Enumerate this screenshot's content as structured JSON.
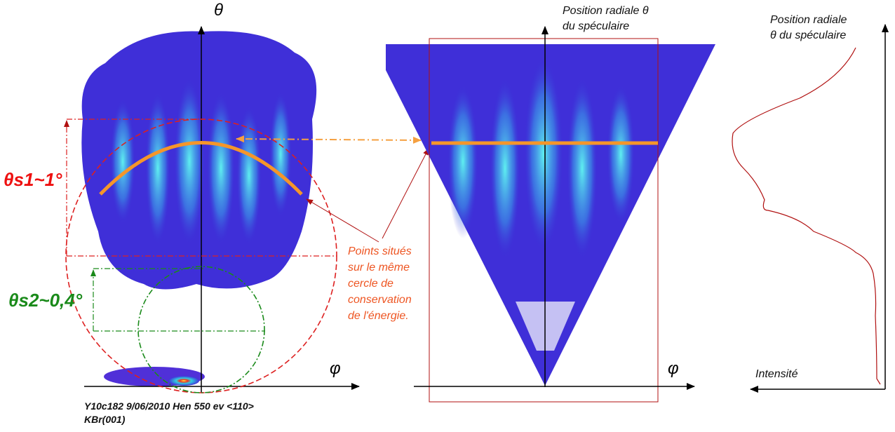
{
  "left_panel": {
    "axis_theta": "θ",
    "axis_phi": "φ",
    "theta_s1": "θs1~1°",
    "theta_s2": "θs2~0,4°",
    "caption": [
      "Y10c182  9/06/2010  Hen 550 ev <110>",
      "KBr(001)"
    ]
  },
  "annotation": {
    "lines": [
      "Points situés",
      "sur le même",
      "cercle de",
      "conservation",
      "de l'énergie."
    ]
  },
  "middle_panel": {
    "axis_label": [
      "Position radiale θ",
      "du spéculaire"
    ],
    "axis_phi": "φ"
  },
  "right_panel": {
    "axis_label": [
      "Position radiale",
      "θ du spéculaire"
    ],
    "axis_intensity": "Intensité"
  }
}
